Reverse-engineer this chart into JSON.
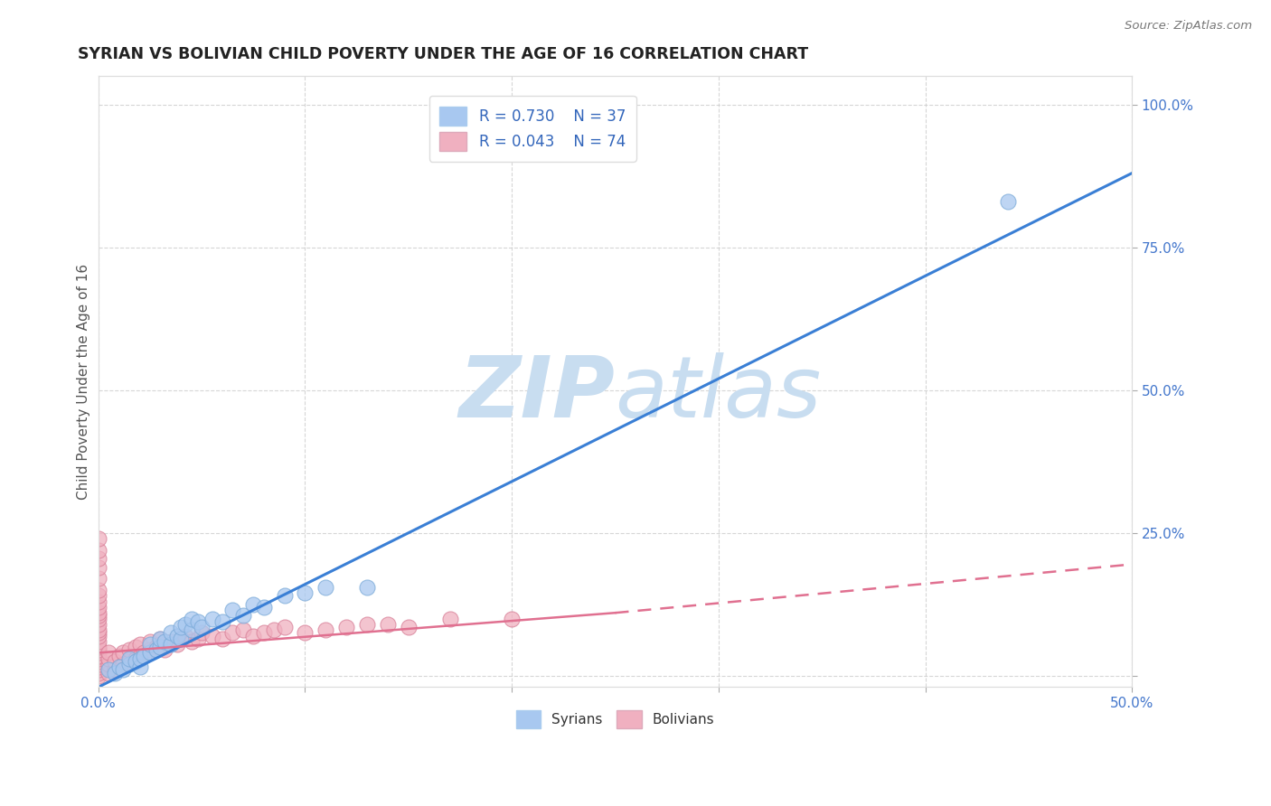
{
  "title": "SYRIAN VS BOLIVIAN CHILD POVERTY UNDER THE AGE OF 16 CORRELATION CHART",
  "source": "Source: ZipAtlas.com",
  "ylabel": "Child Poverty Under the Age of 16",
  "xlim": [
    0.0,
    0.5
  ],
  "ylim": [
    -0.02,
    1.05
  ],
  "xticks": [
    0.0,
    0.1,
    0.2,
    0.3,
    0.4,
    0.5
  ],
  "xticklabels": [
    "0.0%",
    "",
    "",
    "",
    "",
    "50.0%"
  ],
  "yticks": [
    0.0,
    0.25,
    0.5,
    0.75,
    1.0
  ],
  "yticklabels_right": [
    "",
    "25.0%",
    "50.0%",
    "75.0%",
    "100.0%"
  ],
  "legend_r_syrian": "R = 0.730",
  "legend_n_syrian": "N = 37",
  "legend_r_bolivian": "R = 0.043",
  "legend_n_bolivian": "N = 74",
  "watermark_zip": "ZIP",
  "watermark_atlas": "atlas",
  "watermark_color": "#c8ddf0",
  "syrian_color": "#a8c8f0",
  "syrian_edge_color": "#7baad8",
  "bolivian_color": "#f0b0c0",
  "bolivian_edge_color": "#d88098",
  "syrian_line_color": "#3a7fd5",
  "bolivian_line_color": "#e07090",
  "syrian_trendline": [
    [
      0.0,
      -0.02
    ],
    [
      0.5,
      0.88
    ]
  ],
  "bolivian_trendline_solid": [
    [
      0.0,
      0.04
    ],
    [
      0.25,
      0.11
    ]
  ],
  "bolivian_trendline_dashed": [
    [
      0.25,
      0.11
    ],
    [
      0.5,
      0.195
    ]
  ],
  "syrians_scatter": [
    [
      0.005,
      0.01
    ],
    [
      0.008,
      0.005
    ],
    [
      0.01,
      0.015
    ],
    [
      0.012,
      0.01
    ],
    [
      0.015,
      0.02
    ],
    [
      0.015,
      0.03
    ],
    [
      0.018,
      0.025
    ],
    [
      0.02,
      0.015
    ],
    [
      0.02,
      0.03
    ],
    [
      0.022,
      0.035
    ],
    [
      0.025,
      0.04
    ],
    [
      0.025,
      0.055
    ],
    [
      0.028,
      0.045
    ],
    [
      0.03,
      0.05
    ],
    [
      0.03,
      0.065
    ],
    [
      0.032,
      0.06
    ],
    [
      0.035,
      0.055
    ],
    [
      0.035,
      0.075
    ],
    [
      0.038,
      0.07
    ],
    [
      0.04,
      0.065
    ],
    [
      0.04,
      0.085
    ],
    [
      0.042,
      0.09
    ],
    [
      0.045,
      0.08
    ],
    [
      0.045,
      0.1
    ],
    [
      0.048,
      0.095
    ],
    [
      0.05,
      0.085
    ],
    [
      0.055,
      0.1
    ],
    [
      0.06,
      0.095
    ],
    [
      0.065,
      0.115
    ],
    [
      0.07,
      0.105
    ],
    [
      0.075,
      0.125
    ],
    [
      0.08,
      0.12
    ],
    [
      0.09,
      0.14
    ],
    [
      0.1,
      0.145
    ],
    [
      0.11,
      0.155
    ],
    [
      0.13,
      0.155
    ],
    [
      0.44,
      0.83
    ]
  ],
  "bolivians_scatter": [
    [
      0.0,
      0.0
    ],
    [
      0.0,
      0.005
    ],
    [
      0.0,
      0.01
    ],
    [
      0.0,
      0.015
    ],
    [
      0.0,
      0.02
    ],
    [
      0.0,
      0.025
    ],
    [
      0.0,
      0.03
    ],
    [
      0.0,
      0.035
    ],
    [
      0.0,
      0.04
    ],
    [
      0.0,
      0.045
    ],
    [
      0.0,
      0.05
    ],
    [
      0.0,
      0.06
    ],
    [
      0.0,
      0.07
    ],
    [
      0.0,
      0.075
    ],
    [
      0.0,
      0.08
    ],
    [
      0.0,
      0.09
    ],
    [
      0.0,
      0.1
    ],
    [
      0.0,
      0.105
    ],
    [
      0.0,
      0.11
    ],
    [
      0.0,
      0.12
    ],
    [
      0.0,
      0.13
    ],
    [
      0.0,
      0.14
    ],
    [
      0.0,
      0.15
    ],
    [
      0.0,
      0.17
    ],
    [
      0.0,
      0.19
    ],
    [
      0.0,
      0.205
    ],
    [
      0.0,
      0.22
    ],
    [
      0.0,
      0.24
    ],
    [
      0.005,
      0.005
    ],
    [
      0.005,
      0.02
    ],
    [
      0.005,
      0.03
    ],
    [
      0.005,
      0.04
    ],
    [
      0.008,
      0.01
    ],
    [
      0.008,
      0.025
    ],
    [
      0.01,
      0.015
    ],
    [
      0.01,
      0.035
    ],
    [
      0.012,
      0.02
    ],
    [
      0.012,
      0.04
    ],
    [
      0.015,
      0.025
    ],
    [
      0.015,
      0.045
    ],
    [
      0.018,
      0.03
    ],
    [
      0.018,
      0.05
    ],
    [
      0.02,
      0.035
    ],
    [
      0.02,
      0.055
    ],
    [
      0.022,
      0.04
    ],
    [
      0.025,
      0.045
    ],
    [
      0.025,
      0.06
    ],
    [
      0.028,
      0.05
    ],
    [
      0.03,
      0.055
    ],
    [
      0.03,
      0.065
    ],
    [
      0.032,
      0.045
    ],
    [
      0.035,
      0.06
    ],
    [
      0.038,
      0.055
    ],
    [
      0.04,
      0.065
    ],
    [
      0.042,
      0.07
    ],
    [
      0.045,
      0.06
    ],
    [
      0.048,
      0.065
    ],
    [
      0.05,
      0.075
    ],
    [
      0.055,
      0.07
    ],
    [
      0.06,
      0.065
    ],
    [
      0.065,
      0.075
    ],
    [
      0.07,
      0.08
    ],
    [
      0.075,
      0.07
    ],
    [
      0.08,
      0.075
    ],
    [
      0.085,
      0.08
    ],
    [
      0.09,
      0.085
    ],
    [
      0.1,
      0.075
    ],
    [
      0.11,
      0.08
    ],
    [
      0.12,
      0.085
    ],
    [
      0.13,
      0.09
    ],
    [
      0.14,
      0.09
    ],
    [
      0.15,
      0.085
    ],
    [
      0.17,
      0.1
    ],
    [
      0.2,
      0.1
    ]
  ]
}
